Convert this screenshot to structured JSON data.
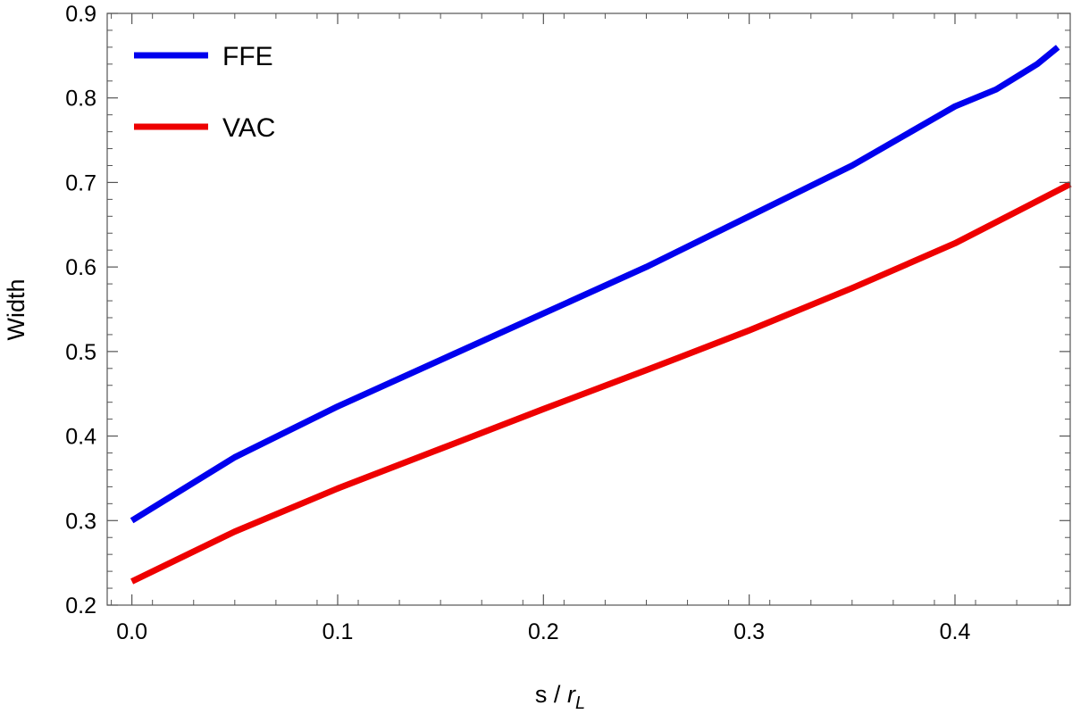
{
  "chart_data": {
    "type": "line",
    "title": "",
    "xlabel_main": "s / ",
    "xlabel_italic": "r",
    "xlabel_sub": "L",
    "ylabel": "Width",
    "xlim": [
      -0.012,
      0.456
    ],
    "ylim": [
      0.2,
      0.9
    ],
    "x_ticks": [
      0.0,
      0.1,
      0.2,
      0.3,
      0.4
    ],
    "x_tick_labels": [
      "0.0",
      "0.1",
      "0.2",
      "0.3",
      "0.4"
    ],
    "y_ticks": [
      0.2,
      0.3,
      0.4,
      0.5,
      0.6,
      0.7,
      0.8,
      0.9
    ],
    "y_tick_labels": [
      "0.2",
      "0.3",
      "0.4",
      "0.5",
      "0.6",
      "0.7",
      "0.8",
      "0.9"
    ],
    "grid": false,
    "legend_placement": "top-left",
    "series": [
      {
        "name": "FFE",
        "color": "#0000ee",
        "x": [
          0.0,
          0.05,
          0.1,
          0.15,
          0.2,
          0.25,
          0.3,
          0.35,
          0.4,
          0.42,
          0.44,
          0.45
        ],
        "y": [
          0.3,
          0.375,
          0.435,
          0.49,
          0.545,
          0.6,
          0.66,
          0.72,
          0.79,
          0.81,
          0.84,
          0.86
        ]
      },
      {
        "name": "VAC",
        "color": "#ee0000",
        "x": [
          0.0,
          0.05,
          0.1,
          0.15,
          0.2,
          0.25,
          0.3,
          0.35,
          0.4,
          0.456
        ],
        "y": [
          0.228,
          0.287,
          0.338,
          0.385,
          0.432,
          0.478,
          0.525,
          0.575,
          0.628,
          0.698
        ]
      }
    ]
  }
}
